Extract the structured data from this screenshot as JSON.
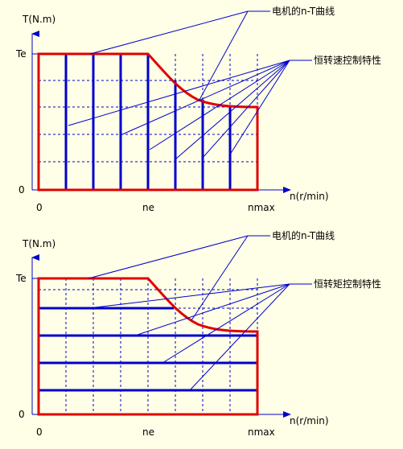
{
  "colors": {
    "background": "#FFFFE7",
    "curve": "#E00000",
    "characteristic": "#0000CC",
    "grid": "#0000CC",
    "axis": "#0000CC",
    "text": "#000000"
  },
  "top": {
    "y_axis_label": "T(N.m)",
    "y_tick_top": "Te",
    "y_tick_zero": "0",
    "x_axis_label": "n(r/min)",
    "x_tick_zero": "0",
    "x_tick_mid": "ne",
    "x_tick_max": "nmax",
    "callout_curve": "电机的n-T曲线",
    "callout_characteristic": "恒转速控制特性"
  },
  "bottom": {
    "y_axis_label": "T(N.m)",
    "y_tick_top": "Te",
    "y_tick_zero": "0",
    "x_axis_label": "n(r/min)",
    "x_tick_zero": "0",
    "x_tick_mid": "ne",
    "x_tick_max": "nmax",
    "callout_curve": "电机的n-T曲线",
    "callout_characteristic": "恒转矩控制特性"
  }
}
